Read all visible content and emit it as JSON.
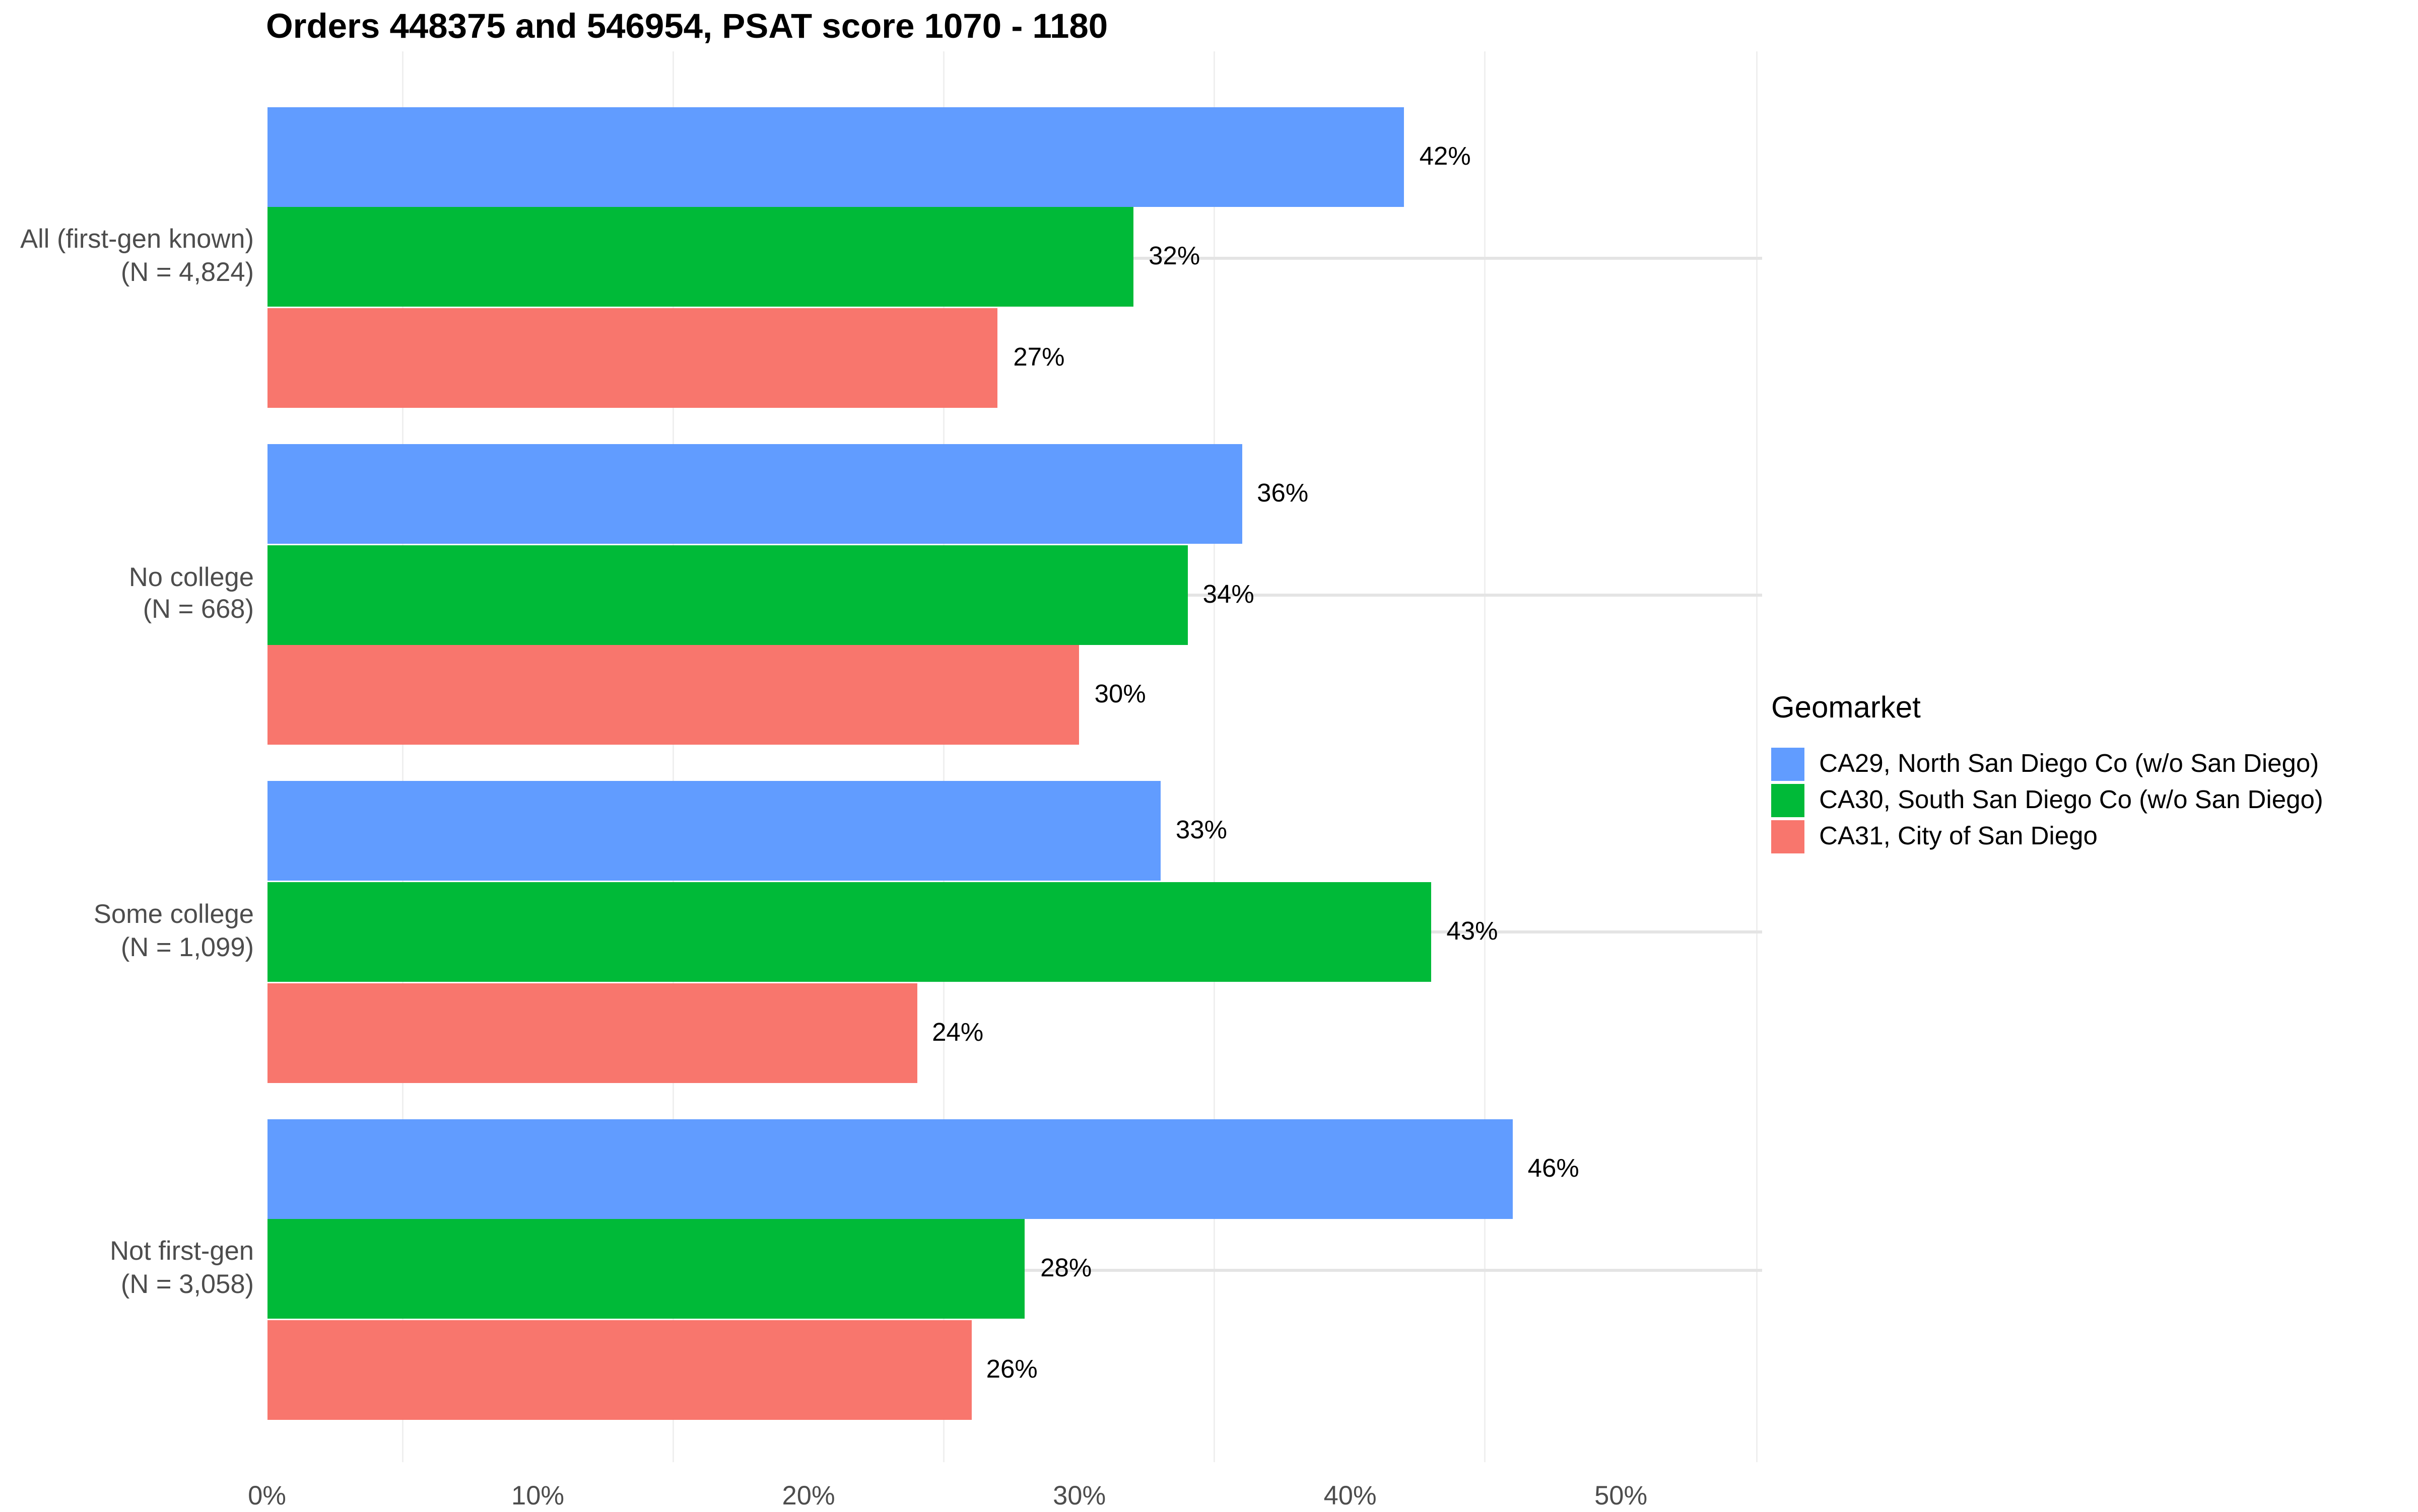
{
  "chart_data": {
    "type": "bar",
    "orientation": "horizontal",
    "title": "Orders 448375 and 546954, PSAT score 1070 - 1180",
    "legend_title": "Geomarket",
    "legend_position": "right",
    "categories": [
      {
        "line1": "All (first-gen known)",
        "line2": "(N = 4,824)"
      },
      {
        "line1": "No college",
        "line2": "(N = 668)"
      },
      {
        "line1": "Some college",
        "line2": "(N = 1,099)"
      },
      {
        "line1": "Not first-gen",
        "line2": "(N = 3,058)"
      }
    ],
    "series": [
      {
        "name": "CA29, North San Diego Co (w/o San Diego)",
        "color": "#619CFF",
        "values": [
          42,
          36,
          33,
          46
        ]
      },
      {
        "name": "CA30, South San Diego Co (w/o San Diego)",
        "color": "#00BA38",
        "values": [
          32,
          34,
          43,
          28
        ]
      },
      {
        "name": "CA31, City of San Diego",
        "color": "#F8766D",
        "values": [
          27,
          30,
          24,
          26
        ]
      }
    ],
    "bar_value_labels": [
      "42%",
      "32%",
      "27%",
      "36%",
      "34%",
      "30%",
      "33%",
      "43%",
      "24%",
      "46%",
      "28%",
      "26%"
    ],
    "value_suffix": "%",
    "x_axis": {
      "tick_values": [
        0,
        10,
        20,
        30,
        40,
        50
      ],
      "tick_labels": [
        "0%",
        "10%",
        "20%",
        "30%",
        "40%",
        "50%"
      ],
      "minor_gridline_values": [
        5,
        15,
        25,
        35,
        45,
        55
      ],
      "range": [
        0,
        55.2
      ]
    },
    "grid": {
      "vertical_minor": true,
      "horizontal_major_at_category_centers": true
    }
  },
  "colors": {
    "background": "#FFFFFF",
    "grid_major": "#E4E4E4",
    "grid_minor": "#EFEFEF",
    "axis_text": "#4D4D4D",
    "title_text": "#000000",
    "value_label_text": "#000000"
  }
}
